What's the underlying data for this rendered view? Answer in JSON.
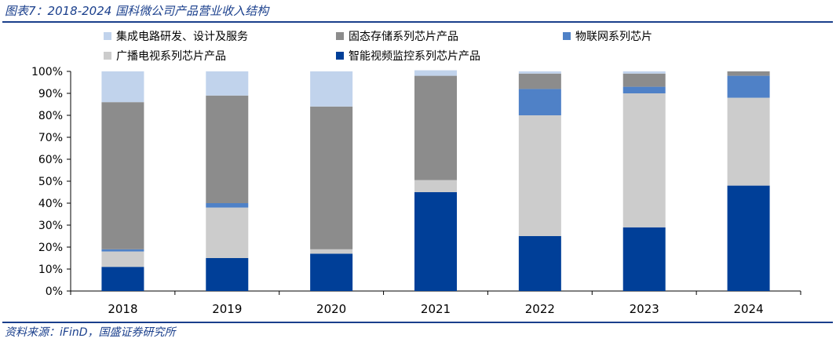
{
  "header": {
    "title": "图表7：2018-2024 国科微公司产品营业收入结构"
  },
  "footer": {
    "source": "资料来源：iFinD，国盛证券研究所"
  },
  "chart_data": {
    "type": "bar",
    "stacked": true,
    "percent": true,
    "categories": [
      "2018",
      "2019",
      "2020",
      "2021",
      "2022",
      "2023",
      "2024"
    ],
    "ylim": [
      0,
      100
    ],
    "yticks": [
      "0%",
      "10%",
      "20%",
      "30%",
      "40%",
      "50%",
      "60%",
      "70%",
      "80%",
      "90%",
      "100%"
    ],
    "legend_position": "top",
    "grid": false,
    "series": [
      {
        "name": "智能视频监控系列芯片产品",
        "color": "#003f98",
        "values": [
          11,
          15,
          17,
          45,
          25,
          29,
          48
        ]
      },
      {
        "name": "广播电视系列芯片产品",
        "color": "#cccccc",
        "values": [
          7,
          23,
          2,
          5.5,
          55,
          61,
          40
        ]
      },
      {
        "name": "物联网系列芯片",
        "color": "#4f81c7",
        "values": [
          1,
          2,
          0,
          0,
          12,
          3,
          10
        ]
      },
      {
        "name": "固态存储系列芯片产品",
        "color": "#8c8c8c",
        "values": [
          67,
          49,
          65,
          47.5,
          7,
          6,
          2
        ]
      },
      {
        "name": "集成电路研发、设计及服务",
        "color": "#c1d3ec",
        "values": [
          14,
          11,
          16,
          2.5,
          1,
          1,
          0
        ]
      }
    ],
    "legend": {
      "rows": [
        [
          "集成电路研发、设计及服务",
          "固态存储系列芯片产品",
          "物联网系列芯片"
        ],
        [
          "广播电视系列芯片产品",
          "智能视频监控系列芯片产品"
        ]
      ]
    }
  }
}
